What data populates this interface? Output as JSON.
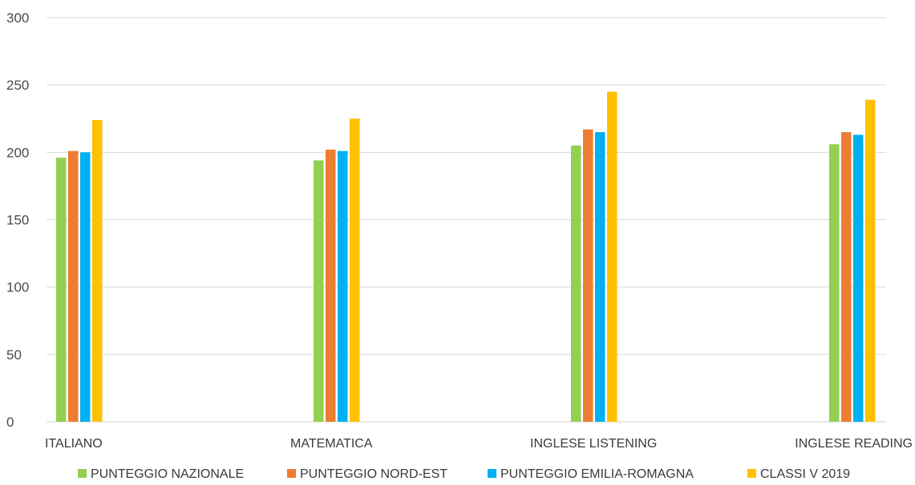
{
  "chart_data": {
    "type": "bar",
    "categories": [
      "ITALIANO",
      "MATEMATICA",
      "INGLESE LISTENING",
      "INGLESE READING"
    ],
    "series": [
      {
        "name": "PUNTEGGIO NAZIONALE",
        "color": "#92d050",
        "values": [
          196,
          194,
          205,
          206
        ]
      },
      {
        "name": "PUNTEGGIO NORD-EST",
        "color": "#ed7d31",
        "values": [
          201,
          202,
          217,
          215
        ]
      },
      {
        "name": "PUNTEGGIO EMILIA-ROMAGNA",
        "color": "#00b0f0",
        "values": [
          200,
          201,
          215,
          213
        ]
      },
      {
        "name": "CLASSI V 2019",
        "color": "#ffc000",
        "values": [
          224,
          225,
          245,
          239
        ]
      }
    ],
    "ylim": [
      0,
      300
    ],
    "yticks": [
      "0",
      "50",
      "100",
      "150",
      "200",
      "250",
      "300"
    ],
    "grid": true,
    "legend_position": "bottom"
  }
}
